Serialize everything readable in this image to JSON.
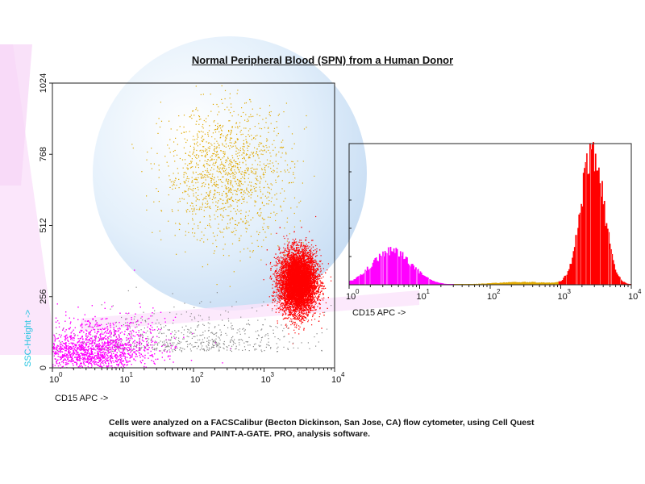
{
  "title": "Normal Peripheral Blood (SPN) from a Human Donor",
  "caption_lines": [
    "Cells were analyzed on a FACSCalibur (Becton Dickinson, San Jose, CA) flow cytometer, using Cell Quest",
    "acquisition software and PAINT-A-GATE. PRO, analysis software."
  ],
  "colors": {
    "neutrophils": "#ff0000",
    "lymphocytes": "#ff00ff",
    "monocytes": "#e0a800",
    "other": "#888888",
    "ylabel": "#22c4e0"
  },
  "chart_data": [
    {
      "type": "scatter",
      "xlabel": "CD15 APC ->",
      "ylabel": "SSC-Height ->",
      "x_scale": "log",
      "xlim": [
        1,
        10000
      ],
      "ylim": [
        0,
        1024
      ],
      "x_ticks": [
        "10",
        "10",
        "10",
        "10",
        "10"
      ],
      "x_tick_exponents": [
        "0",
        "1",
        "2",
        "3",
        "4"
      ],
      "y_ticks": [
        "0",
        "256",
        "512",
        "768",
        "1024"
      ],
      "populations": [
        {
          "color": "#ff0000",
          "x_center": 3000,
          "y_center": 310,
          "count": 9000
        },
        {
          "color": "#ff00ff",
          "x_center": 3,
          "y_center": 45,
          "count": 5000
        },
        {
          "color": "#e0a800",
          "x_center": 300,
          "y_center": 700,
          "count": 1400
        },
        {
          "color": "#888888",
          "x_center": 100,
          "y_center": 60,
          "count": 600
        }
      ]
    },
    {
      "type": "histogram",
      "xlabel": "CD15 APC ->",
      "x_scale": "log",
      "xlim": [
        1,
        10000
      ],
      "x_ticks": [
        "10",
        "10",
        "10",
        "10",
        "10"
      ],
      "x_tick_exponents": [
        "0",
        "1",
        "2",
        "3",
        "4"
      ],
      "peaks": [
        {
          "color": "#ff00ff",
          "x_peak": 4,
          "relative_height": 0.25
        },
        {
          "color": "#e0a800",
          "x_peak": 300,
          "relative_height": 0.02
        },
        {
          "color": "#ff0000",
          "x_peak": 2800,
          "relative_height": 1.0
        }
      ]
    }
  ]
}
